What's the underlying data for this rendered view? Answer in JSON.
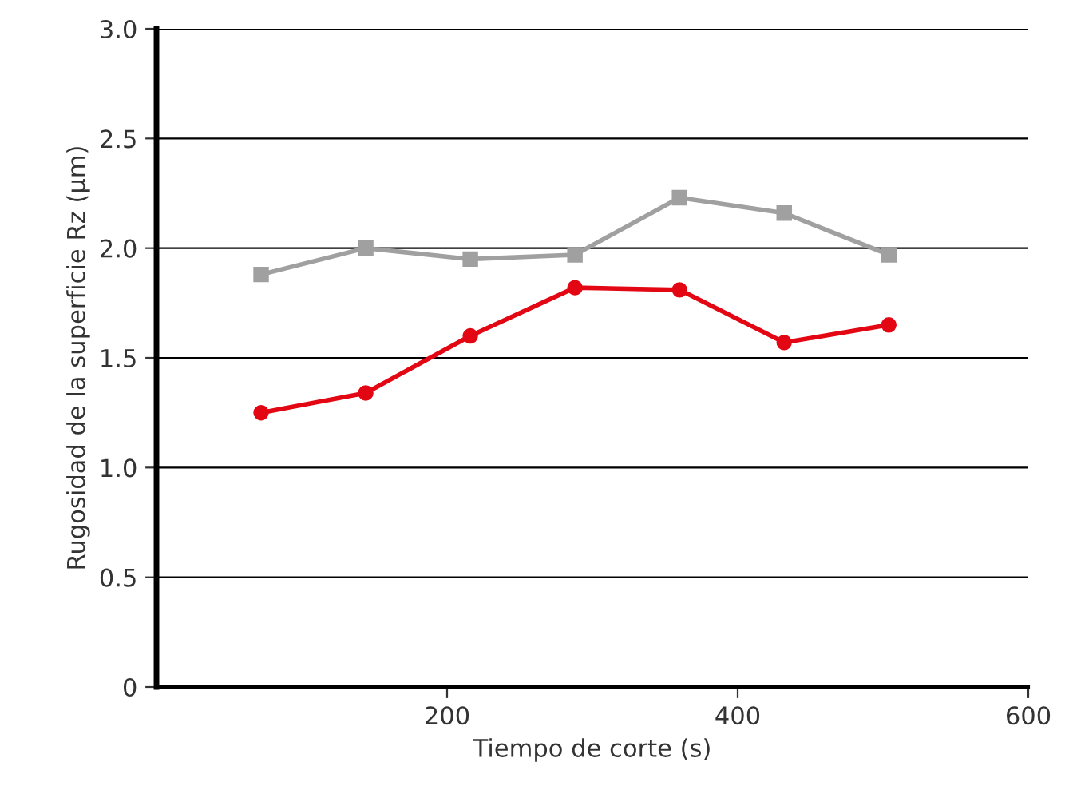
{
  "chart_data": {
    "type": "line",
    "xlabel": "Tiempo de corte (s)",
    "ylabel": "Rugosidad de la superficie Rz (µm)",
    "x": [
      72,
      144,
      216,
      288,
      360,
      432,
      504
    ],
    "series": [
      {
        "color": "#a0a0a0",
        "marker": "square",
        "values": [
          1.88,
          2.0,
          1.95,
          1.97,
          2.23,
          2.16,
          1.97
        ]
      },
      {
        "color": "#e30613",
        "marker": "circle",
        "values": [
          1.25,
          1.34,
          1.6,
          1.82,
          1.81,
          1.57,
          1.65
        ]
      }
    ],
    "xlim": [
      0,
      600
    ],
    "xticks": [
      200,
      400,
      600
    ],
    "ylim": [
      0,
      3.0
    ],
    "yticks": [
      0,
      {
        "value": 0.5,
        "label": "0.5"
      },
      {
        "value": 1.0,
        "label": "1.0"
      },
      {
        "value": 1.5,
        "label": "1.5"
      },
      {
        "value": 2.0,
        "label": "2.0"
      },
      {
        "value": 2.5,
        "label": "2.5"
      },
      {
        "value": 3.0,
        "label": "3.0"
      }
    ],
    "grid": "y",
    "line_style": "solid"
  }
}
